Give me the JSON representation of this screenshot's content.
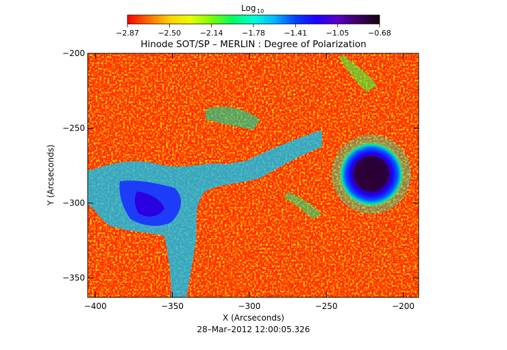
{
  "colorbar": {
    "label_main": "Log",
    "label_sub": "10",
    "ticks": [
      "−2.87",
      "−2.50",
      "−2.14",
      "−1.78",
      "−1.41",
      "−1.05",
      "−0.68"
    ],
    "colors": [
      "#ff0000",
      "#ff6a00",
      "#ffd000",
      "#e8ff00",
      "#7aff00",
      "#00ff60",
      "#00ffd8",
      "#00b8ff",
      "#0040ff",
      "#2000ff",
      "#5a00c8",
      "#3a0060",
      "#1a0010"
    ]
  },
  "plot": {
    "title": "Hinode SOT/SP – MERLIN : Degree of Polarization",
    "xlabel": "X (Arcseconds)",
    "ylabel": "Y (Arcseconds)",
    "x_ticks": [
      "−400",
      "−350",
      "−300",
      "−250",
      "−200"
    ],
    "y_ticks": [
      "−200",
      "−250",
      "−300",
      "−350"
    ],
    "x_range": [
      -405,
      -190
    ],
    "y_range": [
      -363,
      -200
    ],
    "timestamp": "28–Mar–2012 12:00:05.326"
  },
  "image": {
    "background_color": "#ff2a00",
    "sunspot_center": [
      -220,
      -280
    ]
  }
}
